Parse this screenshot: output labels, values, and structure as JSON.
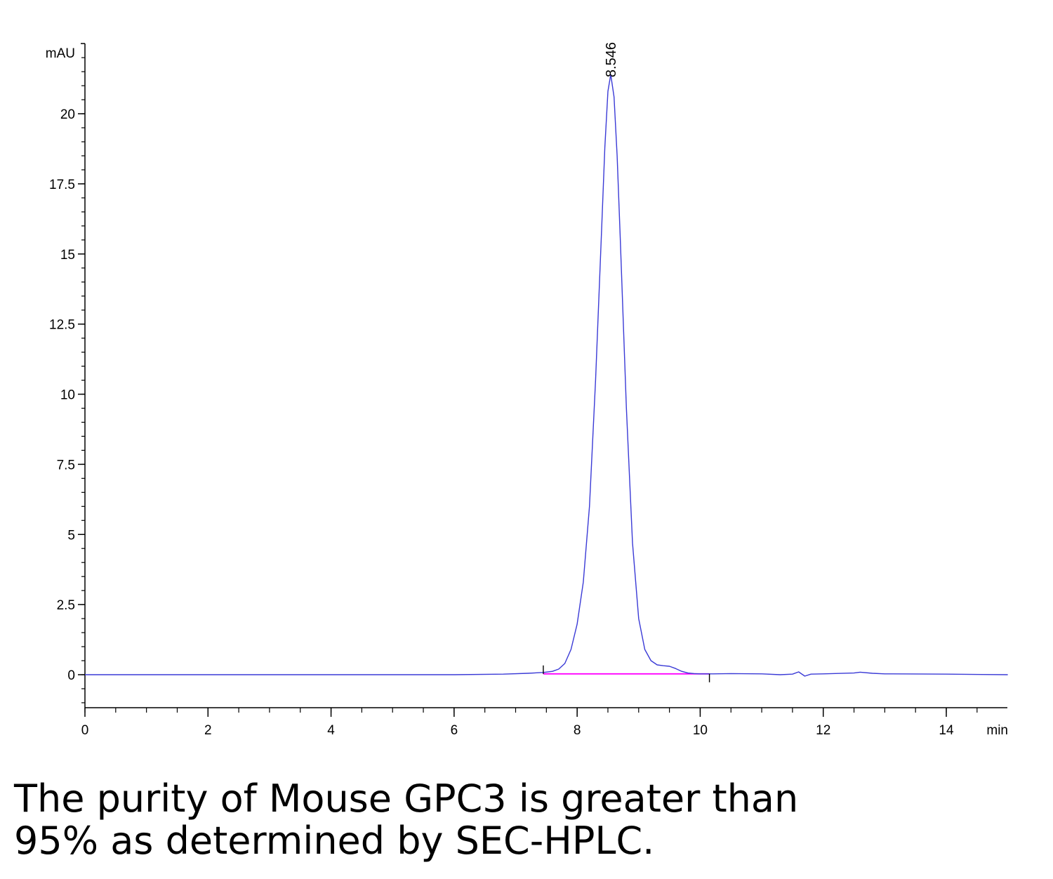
{
  "chart_data": {
    "type": "line",
    "y_unit": "mAU",
    "x_unit": "min",
    "xlim": [
      0,
      15
    ],
    "ylim": [
      -1.1,
      22.5
    ],
    "x_ticks": [
      0,
      2,
      4,
      6,
      8,
      10,
      12,
      14
    ],
    "x_tick_labels": [
      "0",
      "2",
      "4",
      "6",
      "8",
      "10",
      "12",
      "14"
    ],
    "y_ticks": [
      0,
      2.5,
      5,
      7.5,
      10,
      12.5,
      15,
      17.5,
      20
    ],
    "y_tick_labels": [
      "0",
      "2.5",
      "5",
      "7.5",
      "10",
      "12.5",
      "15",
      "17.5",
      "20"
    ],
    "grid": false,
    "series": [
      {
        "color": "#3a3ad6",
        "x": [
          0,
          1,
          2,
          3,
          4,
          5,
          6,
          6.8,
          7.2,
          7.45,
          7.6,
          7.7,
          7.8,
          7.9,
          8.0,
          8.1,
          8.2,
          8.3,
          8.4,
          8.45,
          8.5,
          8.546,
          8.6,
          8.65,
          8.7,
          8.8,
          8.9,
          9.0,
          9.1,
          9.2,
          9.3,
          9.4,
          9.5,
          9.6,
          9.7,
          9.8,
          9.9,
          10.0,
          10.2,
          10.5,
          11.0,
          11.3,
          11.5,
          11.6,
          11.7,
          11.8,
          12.0,
          12.5,
          12.6,
          12.8,
          13.0,
          14.0,
          15.0
        ],
        "y": [
          0,
          0,
          0,
          0,
          0,
          0,
          0,
          0.02,
          0.05,
          0.08,
          0.12,
          0.2,
          0.4,
          0.9,
          1.8,
          3.3,
          6.0,
          10.5,
          16.0,
          18.8,
          20.8,
          21.4,
          20.6,
          18.5,
          15.6,
          9.5,
          4.7,
          2.0,
          0.9,
          0.5,
          0.35,
          0.32,
          0.3,
          0.22,
          0.12,
          0.06,
          0.04,
          0.03,
          0.03,
          0.04,
          0.03,
          0.0,
          0.02,
          0.1,
          -0.05,
          0.02,
          0.03,
          0.06,
          0.09,
          0.05,
          0.03,
          0.02,
          0.0
        ]
      },
      {
        "color": "#ff00ff",
        "x": [
          7.45,
          10.15
        ],
        "y": [
          0.03,
          0.03
        ]
      }
    ],
    "annotations": [
      {
        "text": "8.546",
        "x": 8.546,
        "y": 21.4
      }
    ],
    "integration_marks_x": [
      7.45,
      10.15
    ]
  },
  "caption": {
    "line1": "The purity of Mouse GPC3 is greater than",
    "line2": "95% as determined by SEC-HPLC."
  }
}
